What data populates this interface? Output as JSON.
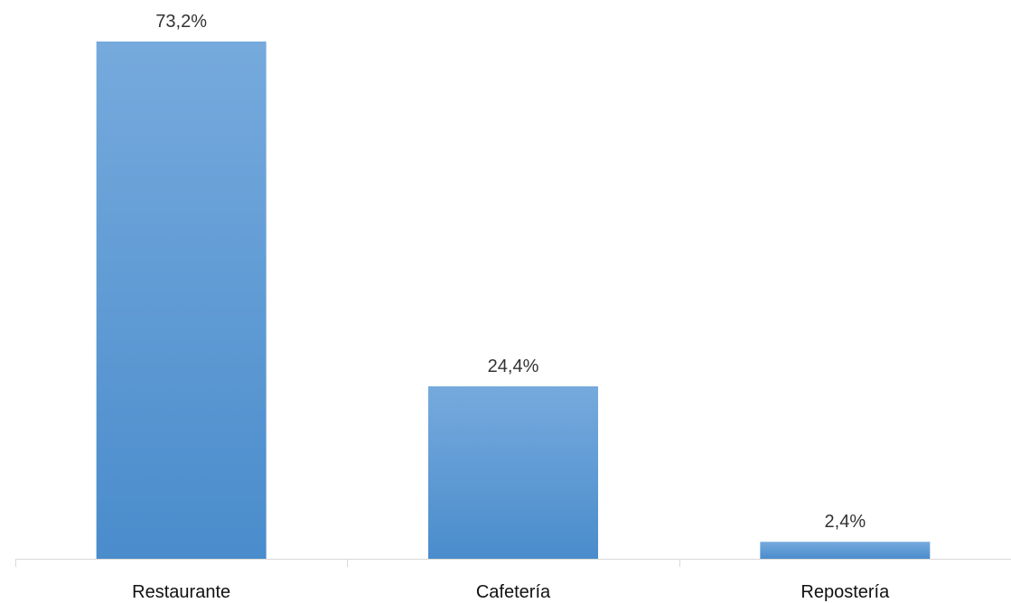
{
  "chart_data": {
    "type": "bar",
    "title": "",
    "xlabel": "",
    "ylabel": "",
    "categories": [
      "Restaurante",
      "Cafetería",
      "Repostería"
    ],
    "values": [
      73.2,
      24.4,
      2.4
    ],
    "data_labels": [
      "73,2%",
      "24,4%",
      "2,4%"
    ],
    "ylim": [
      0,
      73.2
    ],
    "grid": false,
    "legend": "none",
    "bar_color_top": "#76aadd",
    "bar_color_bottom": "#4a8ccc",
    "axis_color": "#d9d9d9"
  }
}
